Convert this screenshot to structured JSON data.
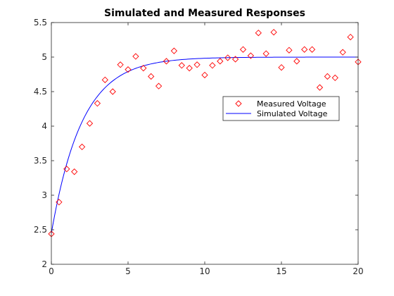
{
  "chart_data": {
    "type": "scatter",
    "title": "Simulated and Measured Responses",
    "xlabel": "",
    "ylabel": "",
    "xlim": [
      0,
      20
    ],
    "ylim": [
      2,
      5.5
    ],
    "x_ticks": [
      0,
      5,
      10,
      15,
      20
    ],
    "y_ticks": [
      2,
      2.5,
      3,
      3.5,
      4,
      4.5,
      5,
      5.5
    ],
    "x_tick_labels": [
      "0",
      "5",
      "10",
      "15",
      "20"
    ],
    "y_tick_labels": [
      "2",
      "2.5",
      "3",
      "3.5",
      "4",
      "4.5",
      "5",
      "5.5"
    ],
    "grid": false,
    "legend": {
      "placement": "right-middle"
    },
    "series": [
      {
        "name": "Measured Voltage",
        "style": "markers",
        "marker": "diamond",
        "color": "#ff0000",
        "x": [
          0,
          0.5,
          1,
          1.5,
          2,
          2.5,
          3,
          3.5,
          4,
          4.5,
          5,
          5.5,
          6,
          6.5,
          7,
          7.5,
          8,
          8.5,
          9,
          9.5,
          10,
          10.5,
          11,
          11.5,
          12,
          12.5,
          13,
          13.5,
          14,
          14.5,
          15,
          15.5,
          16,
          16.5,
          17,
          17.5,
          18,
          18.5,
          19,
          19.5,
          20
        ],
        "y": [
          2.44,
          2.9,
          3.38,
          3.34,
          3.7,
          4.04,
          4.33,
          4.67,
          4.5,
          4.89,
          4.82,
          5.01,
          4.84,
          4.72,
          4.58,
          4.94,
          5.09,
          4.88,
          4.84,
          4.89,
          4.74,
          4.88,
          4.94,
          4.99,
          4.97,
          5.11,
          5.02,
          5.35,
          5.05,
          5.36,
          4.85,
          5.1,
          4.94,
          5.11,
          5.11,
          4.56,
          4.72,
          4.7,
          5.07,
          5.29,
          4.93
        ]
      },
      {
        "name": "Simulated Voltage",
        "style": "line",
        "color": "#0000ff",
        "model": {
          "y0": 2.45,
          "y_final": 5.0,
          "tau": 2.0
        }
      }
    ]
  }
}
